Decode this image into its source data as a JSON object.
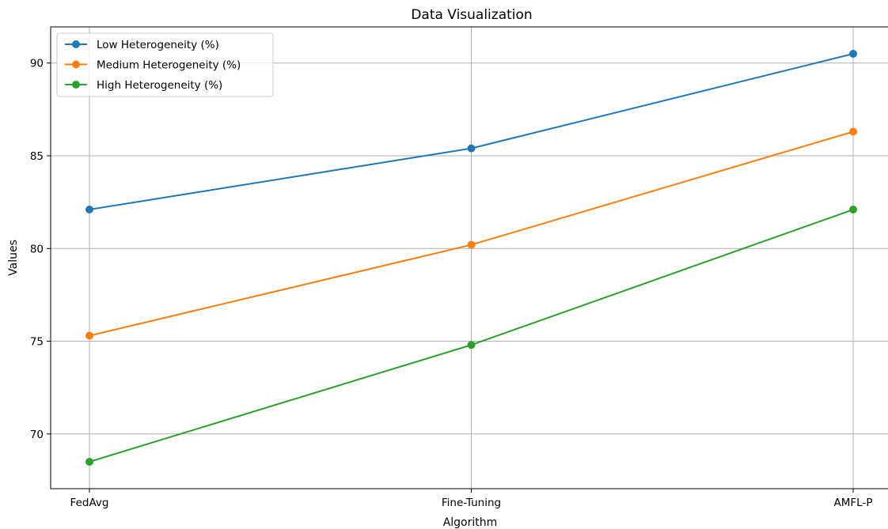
{
  "chart_data": {
    "type": "line",
    "title": "Data Visualization",
    "xlabel": "Algorithm",
    "ylabel": "Values",
    "categories": [
      "FedAvg",
      "Fine-Tuning",
      "AMFL-P"
    ],
    "ylim": [
      67.05,
      91.95
    ],
    "yticks": [
      70,
      75,
      80,
      85,
      90
    ],
    "grid": true,
    "legend_position": "top-left",
    "series": [
      {
        "name": "Low Heterogeneity (%)",
        "values": [
          82.1,
          85.4,
          90.5
        ],
        "color": "#1f77b4"
      },
      {
        "name": "Medium Heterogeneity (%)",
        "values": [
          75.3,
          80.2,
          86.3
        ],
        "color": "#ff7f0e"
      },
      {
        "name": "High Heterogeneity (%)",
        "values": [
          68.5,
          74.8,
          82.1
        ],
        "color": "#2ca02c"
      }
    ]
  }
}
